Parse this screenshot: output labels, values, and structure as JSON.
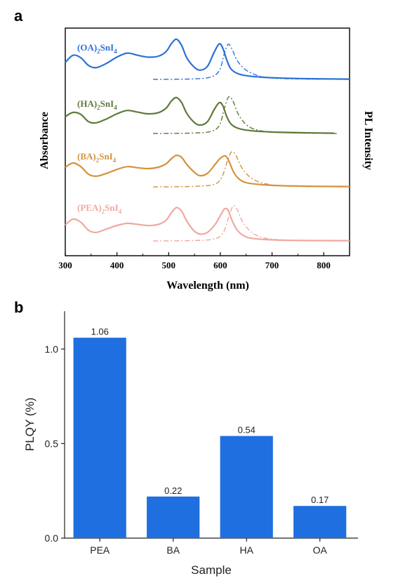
{
  "chart_data": [
    {
      "panel": "a",
      "type": "line",
      "xlabel": "Wavelength (nm)",
      "ylabel_left": "Absorbance",
      "ylabel_right": "PL Intensity",
      "xlim": [
        300,
        850
      ],
      "xticks": [
        300,
        400,
        500,
        600,
        700,
        800
      ],
      "series": [
        {
          "name": "(OA)2SnI4",
          "label_main": "(OA)",
          "label_sub": "2",
          "label_rest": "SnI",
          "label_sub2": "4",
          "color": "#2b72d6",
          "absorbance": {
            "x": [
              300,
              315,
              330,
              345,
              360,
              380,
              400,
              420,
              440,
              460,
              480,
              495,
              505,
              515,
              525,
              535,
              548,
              560,
              575,
              588,
              598,
              605,
              612,
              620,
              632,
              650,
              680,
              720,
              780,
              850
            ],
            "y": [
              0.55,
              0.78,
              0.7,
              0.45,
              0.38,
              0.52,
              0.72,
              0.85,
              0.78,
              0.72,
              0.75,
              0.9,
              1.15,
              1.3,
              1.1,
              0.7,
              0.42,
              0.3,
              0.42,
              0.88,
              1.15,
              1.0,
              0.65,
              0.35,
              0.2,
              0.12,
              0.07,
              0.04,
              0.02,
              0.01
            ]
          },
          "pl": {
            "x": [
              470,
              540,
              580,
              598,
              608,
              615,
              622,
              632,
              645,
              660,
              680,
              710,
              760,
              850
            ],
            "y": [
              0.0,
              0.01,
              0.06,
              0.25,
              0.75,
              1.0,
              0.88,
              0.55,
              0.32,
              0.18,
              0.08,
              0.03,
              0.01,
              0.0
            ]
          }
        },
        {
          "name": "(HA)2SnI4",
          "label_main": "(HA)",
          "label_sub": "2",
          "label_rest": "SnI",
          "label_sub2": "4",
          "color": "#5e7a3a",
          "absorbance": {
            "x": [
              300,
              315,
              330,
              345,
              360,
              380,
              400,
              420,
              440,
              460,
              480,
              495,
              505,
              515,
              525,
              535,
              548,
              560,
              575,
              588,
              598,
              605,
              612,
              620,
              632,
              650,
              680,
              720,
              780,
              820
            ],
            "y": [
              0.6,
              0.75,
              0.68,
              0.42,
              0.38,
              0.52,
              0.7,
              0.82,
              0.76,
              0.7,
              0.74,
              0.9,
              1.15,
              1.28,
              1.1,
              0.72,
              0.42,
              0.3,
              0.42,
              0.85,
              1.1,
              0.98,
              0.62,
              0.35,
              0.2,
              0.12,
              0.07,
              0.04,
              0.02,
              0.01
            ]
          },
          "pl": {
            "x": [
              470,
              540,
              580,
              598,
              608,
              616,
              624,
              634,
              646,
              660,
              680,
              710,
              760,
              825
            ],
            "y": [
              0.0,
              0.01,
              0.05,
              0.22,
              0.7,
              1.0,
              0.9,
              0.55,
              0.3,
              0.15,
              0.07,
              0.03,
              0.01,
              0.0
            ]
          }
        },
        {
          "name": "(BA)2SnI4",
          "label_main": "(BA)",
          "label_sub": "2",
          "label_rest": "SnI",
          "label_sub2": "4",
          "color": "#d4923e",
          "absorbance": {
            "x": [
              300,
              315,
              330,
              345,
              360,
              380,
              400,
              420,
              440,
              460,
              480,
              495,
              505,
              515,
              525,
              535,
              548,
              560,
              575,
              590,
              600,
              610,
              617,
              625,
              635,
              650,
              680,
              720,
              780,
              850
            ],
            "y": [
              0.7,
              0.85,
              0.72,
              0.45,
              0.38,
              0.48,
              0.62,
              0.72,
              0.68,
              0.65,
              0.7,
              0.82,
              1.0,
              1.12,
              1.05,
              0.8,
              0.55,
              0.4,
              0.48,
              0.8,
              1.02,
              1.1,
              0.9,
              0.55,
              0.3,
              0.15,
              0.08,
              0.04,
              0.02,
              0.01
            ]
          },
          "pl": {
            "x": [
              470,
              540,
              585,
              602,
              614,
              622,
              630,
              640,
              652,
              668,
              690,
              720,
              770,
              850
            ],
            "y": [
              0.0,
              0.01,
              0.06,
              0.25,
              0.75,
              1.0,
              0.9,
              0.58,
              0.35,
              0.18,
              0.08,
              0.03,
              0.01,
              0.0
            ]
          }
        },
        {
          "name": "(PEA)2SnI4",
          "label_main": "(PEA)",
          "label_sub": "2",
          "label_rest": "SnI",
          "label_sub2": "4",
          "color": "#f0a8a0",
          "absorbance": {
            "x": [
              300,
              315,
              330,
              345,
              360,
              380,
              400,
              420,
              440,
              460,
              480,
              495,
              505,
              515,
              525,
              535,
              548,
              560,
              575,
              590,
              600,
              608,
              615,
              622,
              632,
              645,
              660,
              690,
              740,
              850
            ],
            "y": [
              0.6,
              0.82,
              0.7,
              0.4,
              0.32,
              0.45,
              0.58,
              0.66,
              0.62,
              0.58,
              0.62,
              0.78,
              1.05,
              1.25,
              1.12,
              0.75,
              0.4,
              0.26,
              0.32,
              0.62,
              0.95,
              1.2,
              1.15,
              0.8,
              0.42,
              0.2,
              0.1,
              0.05,
              0.02,
              0.01
            ]
          },
          "pl": {
            "x": [
              470,
              540,
              585,
              605,
              617,
              625,
              633,
              643,
              655,
              670,
              690,
              720,
              770,
              850
            ],
            "y": [
              0.0,
              0.01,
              0.05,
              0.22,
              0.72,
              1.0,
              0.88,
              0.55,
              0.32,
              0.16,
              0.07,
              0.03,
              0.01,
              0.0
            ]
          }
        }
      ]
    },
    {
      "panel": "b",
      "type": "bar",
      "xlabel": "Sample",
      "ylabel": "PLQY (%)",
      "categories": [
        "PEA",
        "BA",
        "HA",
        "OA"
      ],
      "values": [
        1.06,
        0.22,
        0.54,
        0.17
      ],
      "value_labels": [
        "1.06",
        "0.22",
        "0.54",
        "0.17"
      ],
      "ylim": [
        0.0,
        1.2
      ],
      "yticks": [
        0.0,
        0.5,
        1.0
      ],
      "ytick_labels": [
        "0.0",
        "0.5",
        "1.0"
      ],
      "bar_color": "#1f6fe0",
      "grid": false
    }
  ],
  "panel_letters": [
    "a",
    "b"
  ]
}
